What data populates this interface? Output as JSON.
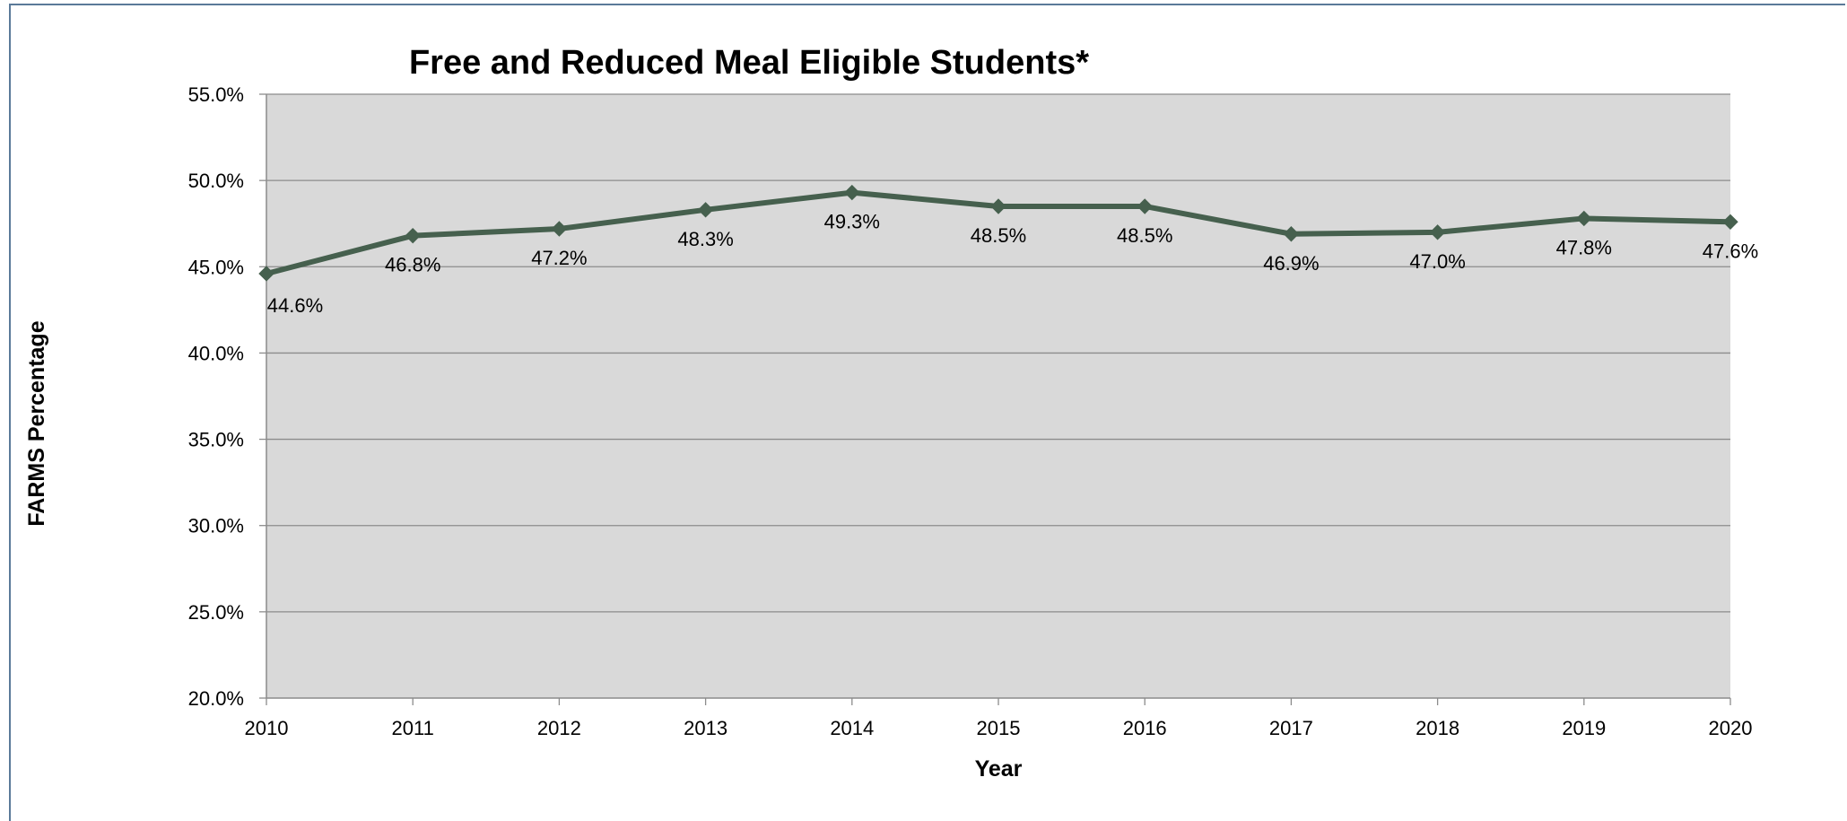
{
  "chart_data": {
    "type": "line",
    "title": "Free and Reduced  Meal Eligible Students*",
    "xlabel": "Year",
    "ylabel": "FARMS Percentage",
    "categories": [
      "2010",
      "2011",
      "2012",
      "2013",
      "2014",
      "2015",
      "2016",
      "2017",
      "2018",
      "2019",
      "2020"
    ],
    "series": [
      {
        "values": [
          44.6,
          46.8,
          47.2,
          48.3,
          49.3,
          48.5,
          48.5,
          46.9,
          47.0,
          47.8,
          47.6
        ],
        "labels": [
          "44.6%",
          "46.8%",
          "47.2%",
          "48.3%",
          "49.3%",
          "48.5%",
          "48.5%",
          "46.9%",
          "47.0%",
          "47.8%",
          "47.6%"
        ]
      }
    ],
    "ylim": [
      20,
      55
    ],
    "yticks": [
      20,
      25,
      30,
      35,
      40,
      45,
      50,
      55
    ],
    "ytick_labels": [
      "20.0%",
      "25.0%",
      "30.0%",
      "35.0%",
      "40.0%",
      "45.0%",
      "50.0%",
      "55.0%"
    ],
    "grid": "horizontal",
    "legend": "none",
    "colors": {
      "line": "#46604e",
      "plot_background": "#d9d9d9",
      "gridline": "#8c8c8c",
      "frame_border": "#5b7a99"
    }
  }
}
